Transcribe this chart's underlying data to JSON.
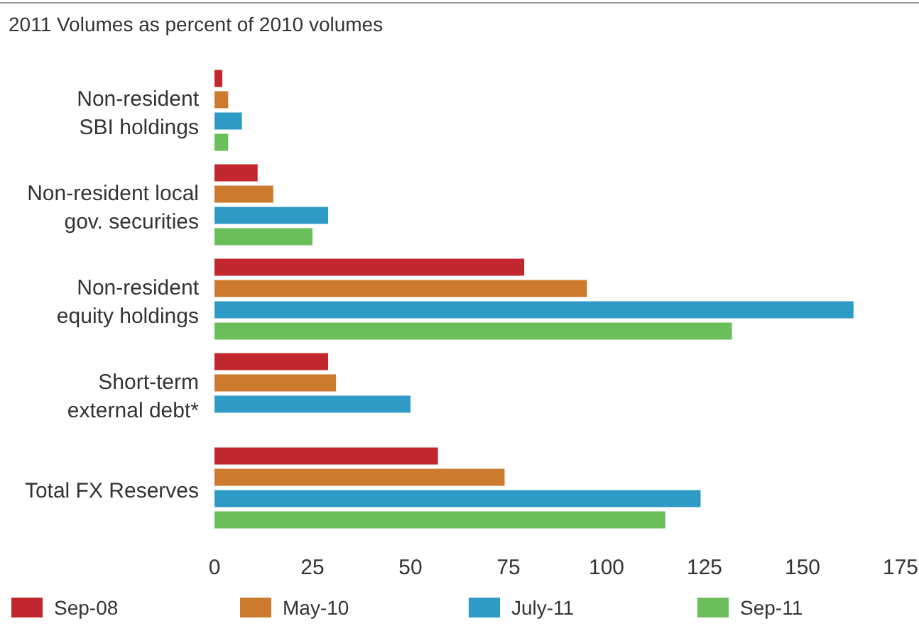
{
  "chart_data": {
    "type": "bar",
    "orientation": "horizontal",
    "title": "2011 Volumes as percent of 2010 volumes",
    "categories": [
      "Non-resident\nSBI holdings",
      "Non-resident local\ngov. securities",
      "Non-resident\nequity holdings",
      "Short-term\nexternal debt*",
      "Total FX Reserves"
    ],
    "series": [
      {
        "name": "Sep-08",
        "color": "#c1272d",
        "values": [
          2,
          11,
          79,
          29,
          57
        ]
      },
      {
        "name": "May-10",
        "color": "#cc7a2e",
        "values": [
          3.5,
          15,
          95,
          31,
          74
        ]
      },
      {
        "name": "July-11",
        "color": "#2e9ac6",
        "values": [
          7,
          29,
          163,
          50,
          124
        ]
      },
      {
        "name": "Sep-11",
        "color": "#6bbf5b",
        "values": [
          3.5,
          25,
          132,
          null,
          115
        ]
      }
    ],
    "xlim": [
      0,
      175
    ],
    "xticks": [
      0,
      25,
      50,
      75,
      100,
      125,
      150,
      175
    ],
    "grid": false,
    "legend": "bottom"
  }
}
